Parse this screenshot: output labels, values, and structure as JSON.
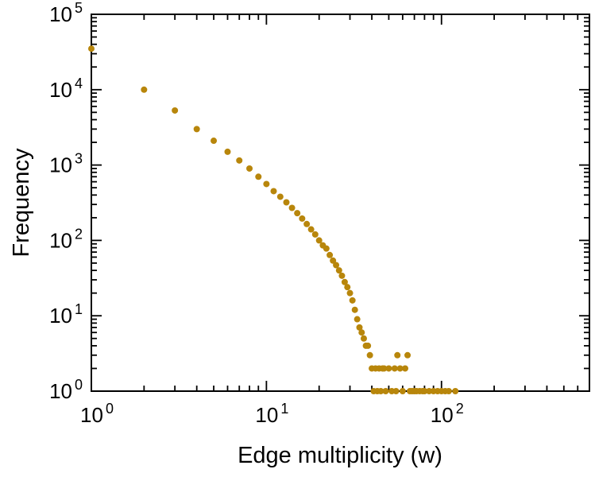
{
  "figure": {
    "background": "#ffffff"
  },
  "chart_data": {
    "type": "scatter",
    "title": "",
    "xlabel": "Edge multiplicity (w)",
    "ylabel": "Frequency",
    "x_scale": "log",
    "y_scale": "log",
    "xlim": [
      1,
      700
    ],
    "ylim": [
      1,
      100000
    ],
    "x_major_tick_exponents": [
      0,
      1,
      2
    ],
    "y_major_tick_exponents": [
      0,
      1,
      2,
      3,
      4,
      5
    ],
    "tick_label_base": "10",
    "grid": false,
    "legend": null,
    "frame_color": "#000000",
    "marker_color": "#b8860b",
    "marker_size": 4,
    "points": [
      [
        1,
        35000
      ],
      [
        2,
        10000
      ],
      [
        3,
        5300
      ],
      [
        4,
        3000
      ],
      [
        5,
        2100
      ],
      [
        6,
        1500
      ],
      [
        7,
        1150
      ],
      [
        8,
        900
      ],
      [
        9,
        700
      ],
      [
        10,
        560
      ],
      [
        11,
        450
      ],
      [
        12,
        380
      ],
      [
        13,
        320
      ],
      [
        14,
        270
      ],
      [
        15,
        230
      ],
      [
        16,
        195
      ],
      [
        17,
        165
      ],
      [
        18,
        140
      ],
      [
        19,
        120
      ],
      [
        20,
        100
      ],
      [
        21,
        86
      ],
      [
        22,
        78
      ],
      [
        23,
        64
      ],
      [
        24,
        54
      ],
      [
        25,
        47
      ],
      [
        26,
        40
      ],
      [
        27,
        34
      ],
      [
        28,
        28
      ],
      [
        29,
        24
      ],
      [
        30,
        20
      ],
      [
        31,
        16
      ],
      [
        32,
        12
      ],
      [
        33,
        9
      ],
      [
        34,
        7
      ],
      [
        35,
        6
      ],
      [
        36,
        5
      ],
      [
        37,
        4
      ],
      [
        38,
        4
      ],
      [
        39,
        3
      ],
      [
        40,
        2
      ],
      [
        41,
        1
      ],
      [
        42,
        2
      ],
      [
        43,
        1
      ],
      [
        44,
        2
      ],
      [
        45,
        1
      ],
      [
        46,
        2
      ],
      [
        47,
        2
      ],
      [
        48,
        1
      ],
      [
        50,
        2
      ],
      [
        52,
        1
      ],
      [
        54,
        2
      ],
      [
        55,
        1
      ],
      [
        56,
        3
      ],
      [
        58,
        2
      ],
      [
        60,
        1
      ],
      [
        62,
        2
      ],
      [
        64,
        3
      ],
      [
        66,
        1
      ],
      [
        68,
        1
      ],
      [
        70,
        1
      ],
      [
        72,
        1
      ],
      [
        75,
        1
      ],
      [
        78,
        1
      ],
      [
        80,
        1
      ],
      [
        85,
        1
      ],
      [
        90,
        1
      ],
      [
        95,
        1
      ],
      [
        100,
        1
      ],
      [
        105,
        1
      ],
      [
        110,
        1
      ],
      [
        120,
        1
      ]
    ]
  }
}
